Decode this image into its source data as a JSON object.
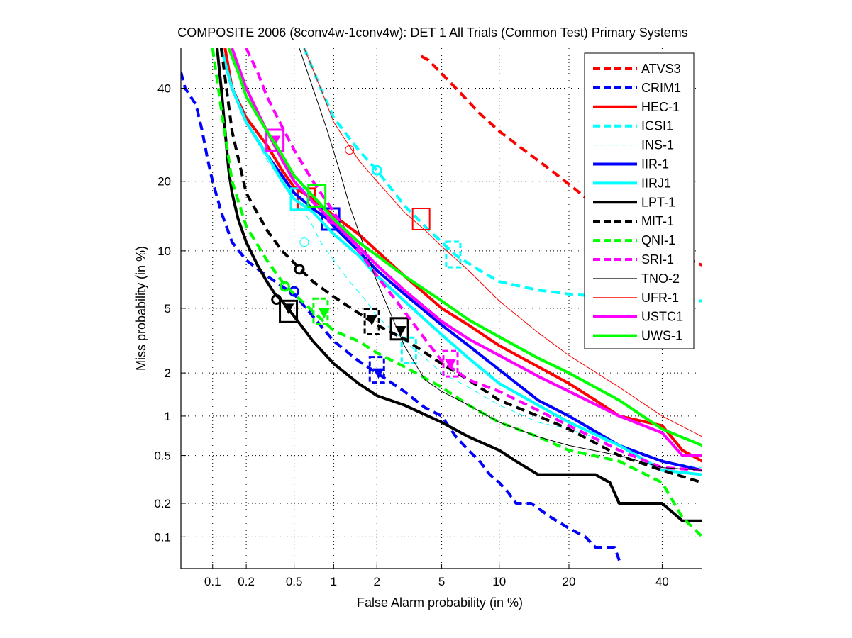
{
  "chart_data": {
    "type": "line",
    "scale": "normal-deviate (DET)",
    "title": "COMPOSITE 2006 (8conv4w-1conv4w): DET 1 All Trials (Common Test) Primary Systems",
    "xlabel": "False Alarm probability (in %)",
    "ylabel": "Miss probability (in %)",
    "xlim": [
      0.05,
      50
    ],
    "ylim": [
      0.05,
      50
    ],
    "xticks": [
      0.1,
      0.2,
      0.5,
      1,
      2,
      5,
      10,
      20,
      40
    ],
    "yticks": [
      0.1,
      0.2,
      0.5,
      1,
      2,
      5,
      10,
      20,
      40
    ],
    "xtick_labels": [
      "0.1",
      "0.2",
      "0.5",
      "1",
      "2",
      "5",
      "10",
      "20",
      "40"
    ],
    "ytick_labels": [
      "0.1",
      "0.2",
      "0.5",
      "1",
      "2",
      "5",
      "10",
      "20",
      "40"
    ],
    "grid": true,
    "legend_position": "top-right",
    "series": [
      {
        "name": "ATVS3",
        "color": "#ff0000",
        "style": "dashed",
        "weight": "thick",
        "x": [
          3.8,
          4.2,
          6,
          8,
          10,
          13,
          17,
          22,
          28,
          36,
          50
        ],
        "y": [
          48,
          47,
          40,
          34,
          30,
          26,
          22,
          18,
          14,
          11,
          8.5
        ],
        "markers": []
      },
      {
        "name": "CRIM1",
        "color": "#0000ff",
        "style": "dashed",
        "weight": "thick",
        "x": [
          0.05,
          0.055,
          0.07,
          0.08,
          0.09,
          0.1,
          0.12,
          0.15,
          0.2,
          0.3,
          0.4,
          0.5,
          0.7,
          1,
          1.5,
          2,
          3,
          4,
          5,
          6,
          7,
          8,
          9,
          10,
          11,
          12,
          14,
          17,
          20,
          23,
          25,
          29,
          30
        ],
        "y": [
          44,
          40,
          36,
          30,
          24,
          20,
          15,
          11,
          9,
          7.5,
          6.6,
          6,
          4.5,
          3.2,
          2.4,
          2.0,
          1.5,
          1.15,
          1.0,
          0.7,
          0.55,
          0.45,
          0.35,
          0.3,
          0.25,
          0.2,
          0.2,
          0.15,
          0.12,
          0.1,
          0.08,
          0.08,
          0.06
        ],
        "markers": [
          {
            "type": "circle",
            "x": 0.5,
            "y": 6.2
          },
          {
            "type": "triangle",
            "x": 2.05,
            "y": 2.0
          },
          {
            "type": "dashed-box",
            "x": 2.0,
            "y": 2.1
          }
        ]
      },
      {
        "name": "HEC-1",
        "color": "#ff0000",
        "style": "solid",
        "weight": "thick",
        "x": [
          0.13,
          0.15,
          0.2,
          0.3,
          0.4,
          0.5,
          0.7,
          1,
          1.5,
          2,
          3,
          5,
          7,
          10,
          15,
          20,
          25,
          30,
          40,
          45,
          50
        ],
        "y": [
          50,
          40,
          33,
          27,
          22,
          19,
          17,
          14.5,
          12,
          10,
          7.5,
          5,
          4,
          3,
          2.2,
          1.7,
          1.3,
          1.0,
          0.85,
          0.55,
          0.45
        ],
        "markers": [
          {
            "type": "box",
            "x": 0.62,
            "y": 17
          }
        ]
      },
      {
        "name": "ICSI1",
        "color": "#00ffff",
        "style": "dashed",
        "weight": "thick",
        "x": [
          0.6,
          0.8,
          1,
          1.5,
          2,
          3,
          4,
          5,
          6,
          8,
          10,
          15,
          20,
          30,
          40,
          50
        ],
        "y": [
          50,
          40,
          33,
          26,
          22,
          16,
          13,
          11,
          9.5,
          8,
          7,
          6.3,
          6,
          5.7,
          5.6,
          5.5
        ],
        "markers": [
          {
            "type": "circle",
            "x": 2.0,
            "y": 22
          },
          {
            "type": "dashed-box",
            "x": 5.8,
            "y": 9.6
          }
        ]
      },
      {
        "name": "INS-1",
        "color": "#00ffff",
        "style": "dashed",
        "weight": "thin",
        "x": [
          0.12,
          0.15,
          0.2,
          0.3,
          0.4,
          0.5,
          0.6,
          0.7,
          0.8,
          1,
          1.3,
          1.7,
          2,
          3,
          4,
          5,
          7,
          10,
          15,
          20,
          30,
          40,
          50
        ],
        "y": [
          50,
          40,
          32,
          24,
          20,
          17,
          15,
          13,
          11,
          9,
          7,
          5.5,
          4.5,
          3.2,
          2.5,
          2.0,
          1.6,
          1.2,
          0.9,
          0.8,
          0.6,
          0.45,
          0.4
        ],
        "markers": [
          {
            "type": "circle",
            "x": 0.6,
            "y": 11
          }
        ]
      },
      {
        "name": "IIR-1",
        "color": "#0000ff",
        "style": "solid",
        "weight": "thick",
        "x": [
          0.12,
          0.15,
          0.2,
          0.3,
          0.4,
          0.5,
          0.7,
          0.9,
          1,
          1.5,
          2,
          3,
          5,
          7,
          10,
          15,
          20,
          30,
          40,
          50
        ],
        "y": [
          50,
          40,
          32,
          25,
          21,
          18,
          15.5,
          14,
          13,
          10,
          8,
          6,
          4,
          3,
          2.1,
          1.3,
          1.0,
          0.6,
          0.45,
          0.38
        ],
        "markers": [
          {
            "type": "box",
            "x": 0.95,
            "y": 14
          }
        ]
      },
      {
        "name": "IIRJ1",
        "color": "#00ffff",
        "style": "solid",
        "weight": "thick",
        "x": [
          0.12,
          0.15,
          0.2,
          0.3,
          0.4,
          0.5,
          0.7,
          1,
          1.5,
          2,
          3,
          5,
          7,
          10,
          15,
          20,
          30,
          40,
          50
        ],
        "y": [
          50,
          40,
          32,
          25,
          20,
          17,
          15,
          12,
          9.5,
          7.5,
          5.5,
          3.5,
          2.5,
          1.7,
          1.2,
          0.9,
          0.6,
          0.38,
          0.35
        ],
        "markers": [
          {
            "type": "box",
            "x": 0.55,
            "y": 17
          },
          {
            "type": "dashed-box",
            "x": 3.2,
            "y": 2.8
          }
        ]
      },
      {
        "name": "LPT-1",
        "color": "#000000",
        "style": "solid",
        "weight": "thick",
        "x": [
          0.11,
          0.12,
          0.13,
          0.14,
          0.15,
          0.17,
          0.2,
          0.25,
          0.3,
          0.35,
          0.4,
          0.5,
          0.7,
          1,
          1.5,
          2,
          3,
          5,
          7,
          10,
          12,
          15,
          20,
          25,
          28,
          30,
          35,
          40,
          45,
          50
        ],
        "y": [
          50,
          40,
          30,
          22,
          18,
          14,
          11,
          8.5,
          7,
          6,
          5.5,
          4.5,
          3.2,
          2.3,
          1.7,
          1.4,
          1.2,
          0.9,
          0.7,
          0.55,
          0.45,
          0.35,
          0.35,
          0.35,
          0.3,
          0.2,
          0.2,
          0.2,
          0.14,
          0.14
        ],
        "markers": [
          {
            "type": "circle",
            "x": 0.36,
            "y": 5.6
          },
          {
            "type": "triangle",
            "x": 0.45,
            "y": 5.0
          },
          {
            "type": "box",
            "x": 0.45,
            "y": 4.8
          }
        ]
      },
      {
        "name": "MIT-1",
        "color": "#000000",
        "style": "dashed",
        "weight": "thick",
        "x": [
          0.12,
          0.15,
          0.2,
          0.3,
          0.4,
          0.55,
          0.7,
          1,
          1.5,
          2,
          3,
          5,
          7,
          10,
          15,
          20,
          30,
          40,
          50
        ],
        "y": [
          50,
          30,
          18,
          12.5,
          10,
          8.2,
          7,
          5.8,
          4.7,
          4,
          3.3,
          2.3,
          1.8,
          1.3,
          1.0,
          0.8,
          0.5,
          0.38,
          0.3
        ],
        "markers": [
          {
            "type": "circle",
            "x": 0.55,
            "y": 8.1
          },
          {
            "type": "triangle",
            "x": 1.85,
            "y": 4.3
          },
          {
            "type": "dashed-box",
            "x": 1.85,
            "y": 4.2
          },
          {
            "type": "box",
            "x": 2.8,
            "y": 3.8
          }
        ]
      },
      {
        "name": "QNI-1",
        "color": "#00ff00",
        "style": "dashed",
        "weight": "thick",
        "x": [
          0.1,
          0.12,
          0.15,
          0.2,
          0.3,
          0.4,
          0.5,
          0.7,
          1,
          1.5,
          2,
          3,
          5,
          7,
          10,
          15,
          20,
          30,
          40,
          45,
          50
        ],
        "y": [
          50,
          35,
          20,
          13,
          9,
          7,
          6,
          4.8,
          3.7,
          3.2,
          2.7,
          2.2,
          1.6,
          1.2,
          0.9,
          0.7,
          0.55,
          0.45,
          0.3,
          0.15,
          0.1
        ],
        "markers": [
          {
            "type": "circle",
            "x": 0.42,
            "y": 6.6
          },
          {
            "type": "triangle",
            "x": 0.85,
            "y": 4.7
          },
          {
            "type": "dashed-box",
            "x": 0.8,
            "y": 4.8
          }
        ]
      },
      {
        "name": "SRI-1",
        "color": "#ff00ff",
        "style": "dashed",
        "weight": "thick",
        "x": [
          0.2,
          0.25,
          0.3,
          0.4,
          0.5,
          0.7,
          1,
          1.5,
          2,
          3,
          4,
          5,
          7,
          10,
          15,
          20,
          30,
          40,
          50
        ],
        "y": [
          50,
          44,
          38,
          31,
          26,
          20,
          15,
          10,
          7.5,
          4.8,
          3.3,
          2.4,
          1.8,
          1.5,
          1.1,
          0.85,
          0.55,
          0.4,
          0.38
        ],
        "markers": [
          {
            "type": "triangle",
            "x": 5.6,
            "y": 2.3
          },
          {
            "type": "dashed-box",
            "x": 5.6,
            "y": 2.3
          }
        ]
      },
      {
        "name": "TNO-2",
        "color": "#000000",
        "style": "solid",
        "weight": "thin",
        "x": [
          0.55,
          0.7,
          0.9,
          1.1,
          1.3,
          1.6,
          2,
          2.5,
          3,
          3.5,
          4,
          5,
          7,
          10,
          15,
          20,
          30,
          40,
          50
        ],
        "y": [
          50,
          40,
          30,
          22,
          16,
          11,
          7,
          4.5,
          3.0,
          2.3,
          1.8,
          1.5,
          1.2,
          0.9,
          0.7,
          0.6,
          0.5,
          0.4,
          0.38
        ],
        "markers": [
          {
            "type": "triangle",
            "x": 2.85,
            "y": 3.7
          }
        ]
      },
      {
        "name": "UFR-1",
        "color": "#ff0000",
        "style": "solid",
        "weight": "thin",
        "x": [
          0.6,
          0.8,
          1,
          1.5,
          2,
          3,
          4,
          5,
          7,
          10,
          15,
          20,
          30,
          40,
          50
        ],
        "y": [
          50,
          40,
          32,
          24,
          20,
          15,
          12.5,
          10.5,
          8,
          5.5,
          3.6,
          2.6,
          1.6,
          1.0,
          0.7
        ],
        "markers": [
          {
            "type": "circle",
            "x": 1.3,
            "y": 26
          },
          {
            "type": "box",
            "x": 3.8,
            "y": 14
          }
        ]
      },
      {
        "name": "USTC1",
        "color": "#ff00ff",
        "style": "solid",
        "weight": "thick",
        "x": [
          0.15,
          0.2,
          0.3,
          0.4,
          0.5,
          0.7,
          1,
          1.5,
          2,
          3,
          5,
          7,
          10,
          15,
          20,
          30,
          40,
          45,
          50
        ],
        "y": [
          50,
          40,
          30,
          24,
          20,
          16.5,
          13.5,
          10.5,
          8.5,
          6.3,
          4.2,
          3.3,
          2.6,
          1.9,
          1.5,
          1.0,
          0.75,
          0.5,
          0.5
        ],
        "markers": [
          {
            "type": "triangle",
            "x": 0.35,
            "y": 28
          },
          {
            "type": "box",
            "x": 0.35,
            "y": 28
          },
          {
            "type": "circle",
            "x": 0.97,
            "y": 14
          }
        ]
      },
      {
        "name": "UWS-1",
        "color": "#00ff00",
        "style": "solid",
        "weight": "thick",
        "x": [
          0.14,
          0.17,
          0.2,
          0.3,
          0.4,
          0.5,
          0.7,
          1,
          1.5,
          2,
          3,
          5,
          7,
          10,
          15,
          20,
          30,
          40,
          50
        ],
        "y": [
          50,
          44,
          38,
          30,
          25,
          21,
          17.5,
          14,
          11,
          9.5,
          7.5,
          5.5,
          4.3,
          3.4,
          2.5,
          2.0,
          1.3,
          0.8,
          0.6
        ],
        "markers": [
          {
            "type": "box",
            "x": 0.75,
            "y": 17.5
          }
        ]
      }
    ]
  }
}
